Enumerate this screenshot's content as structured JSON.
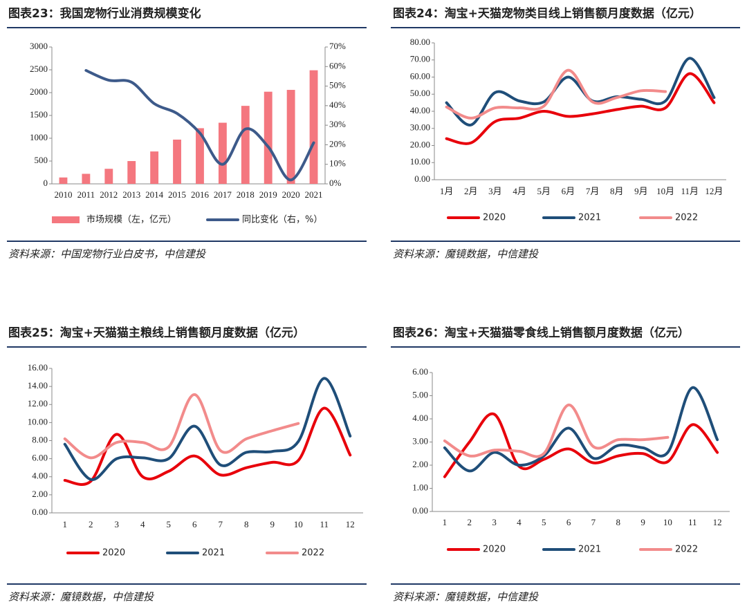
{
  "chart_data": [
    {
      "type": "combo",
      "title": "图表23：我国宠物行业消费规模变化",
      "source": "资料来源：中国宠物行业白皮书，中信建投",
      "categories": [
        "2010",
        "2011",
        "2012",
        "2013",
        "2014",
        "2015",
        "2016",
        "2017",
        "2018",
        "2019",
        "2020",
        "2021"
      ],
      "series": [
        {
          "name": "市场规模（左，亿元）",
          "type": "bar",
          "color": "#f4777f",
          "values": [
            140,
            220,
            330,
            500,
            710,
            970,
            1220,
            1340,
            1710,
            2020,
            2060,
            2490
          ]
        },
        {
          "name": "同比变化（右，%）",
          "type": "line",
          "axis": "y2",
          "color": "#3d5a8a",
          "values": [
            null,
            58,
            53,
            52,
            41,
            36,
            26,
            10,
            28,
            19,
            2,
            21
          ]
        }
      ],
      "ylim": [
        0,
        3000
      ],
      "yticks": [
        0,
        500,
        1000,
        1500,
        2000,
        2500,
        3000
      ],
      "y2lim": [
        0,
        70
      ],
      "y2ticks": [
        {
          "value": 0,
          "label": "0%"
        },
        {
          "value": 10,
          "label": "10%"
        },
        {
          "value": 20,
          "label": "20%"
        },
        {
          "value": 30,
          "label": "30%"
        },
        {
          "value": 40,
          "label": "40%"
        },
        {
          "value": 50,
          "label": "50%"
        },
        {
          "value": 60,
          "label": "60%"
        },
        {
          "value": 70,
          "label": "70%"
        }
      ]
    },
    {
      "type": "line",
      "title": "图表24：淘宝+天猫宠物类目线上销售额月度数据（亿元）",
      "source": "资料来源：魔镜数据，中信建投",
      "categories": [
        "1月",
        "2月",
        "3月",
        "4月",
        "5月",
        "6月",
        "7月",
        "8月",
        "9月",
        "10月",
        "11月",
        "12月"
      ],
      "series": [
        {
          "name": "2020",
          "color": "#e8000b",
          "values": [
            24,
            21.5,
            34,
            36,
            40,
            37,
            38.5,
            41,
            43,
            42,
            62,
            45
          ]
        },
        {
          "name": "2021",
          "color": "#1f4e79",
          "values": [
            45,
            32,
            51,
            46,
            45.5,
            60,
            46,
            48.5,
            47,
            46,
            71,
            48
          ]
        },
        {
          "name": "2022",
          "color": "#f28b8b",
          "values": [
            42.5,
            36,
            42,
            42,
            43,
            64,
            45.5,
            48,
            52,
            51.5,
            null,
            null
          ]
        }
      ],
      "ylim": [
        0,
        80
      ],
      "yticks": [
        {
          "value": 0,
          "label": "0.00"
        },
        {
          "value": 10,
          "label": "10.00"
        },
        {
          "value": 20,
          "label": "20.00"
        },
        {
          "value": 30,
          "label": "30.00"
        },
        {
          "value": 40,
          "label": "40.00"
        },
        {
          "value": 50,
          "label": "50.00"
        },
        {
          "value": 60,
          "label": "60.00"
        },
        {
          "value": 70,
          "label": "70.00"
        },
        {
          "value": 80,
          "label": "80.00"
        }
      ]
    },
    {
      "type": "line",
      "title": "图表25：淘宝+天猫猫主粮线上销售额月度数据（亿元）",
      "source": "资料来源：魔镜数据，中信建投",
      "categories": [
        "1",
        "2",
        "3",
        "4",
        "5",
        "6",
        "7",
        "8",
        "9",
        "10",
        "11",
        "12"
      ],
      "series": [
        {
          "name": "2020",
          "color": "#e8000b",
          "values": [
            3.6,
            3.5,
            8.7,
            4.0,
            4.6,
            6.3,
            4.2,
            5.0,
            5.6,
            5.8,
            11.6,
            6.4
          ]
        },
        {
          "name": "2021",
          "color": "#1f4e79",
          "values": [
            7.6,
            3.7,
            6.0,
            6.1,
            6.0,
            9.6,
            5.3,
            6.7,
            6.8,
            7.9,
            14.9,
            8.5
          ]
        },
        {
          "name": "2022",
          "color": "#f28b8b",
          "values": [
            8.2,
            6.1,
            7.8,
            7.8,
            7.3,
            13.1,
            6.9,
            8.2,
            9.1,
            9.9,
            null,
            null
          ]
        }
      ],
      "ylim": [
        0,
        16
      ],
      "yticks": [
        {
          "value": 0,
          "label": "0.00"
        },
        {
          "value": 2,
          "label": "2.00"
        },
        {
          "value": 4,
          "label": "4.00"
        },
        {
          "value": 6,
          "label": "6.00"
        },
        {
          "value": 8,
          "label": "8.00"
        },
        {
          "value": 10,
          "label": "10.00"
        },
        {
          "value": 12,
          "label": "12.00"
        },
        {
          "value": 14,
          "label": "14.00"
        },
        {
          "value": 16,
          "label": "16.00"
        }
      ]
    },
    {
      "type": "line",
      "title": "图表26：淘宝+天猫猫零食线上销售额月度数据（亿元）",
      "source": "资料来源：魔镜数据，中信建投",
      "categories": [
        "1",
        "2",
        "3",
        "4",
        "5",
        "6",
        "7",
        "8",
        "9",
        "10",
        "11",
        "12"
      ],
      "series": [
        {
          "name": "2020",
          "color": "#e8000b",
          "values": [
            1.5,
            3.0,
            4.2,
            1.95,
            2.25,
            2.7,
            2.1,
            2.4,
            2.5,
            2.15,
            3.75,
            2.55
          ]
        },
        {
          "name": "2021",
          "color": "#1f4e79",
          "values": [
            2.75,
            1.75,
            2.55,
            2.0,
            2.4,
            3.6,
            2.3,
            2.85,
            2.75,
            2.55,
            5.35,
            3.1
          ]
        },
        {
          "name": "2022",
          "color": "#f28b8b",
          "values": [
            3.05,
            2.4,
            2.65,
            2.6,
            2.5,
            4.6,
            2.8,
            3.1,
            3.1,
            3.2,
            null,
            null
          ]
        }
      ],
      "ylim": [
        0,
        6
      ],
      "yticks": [
        {
          "value": 0,
          "label": "0.00"
        },
        {
          "value": 1,
          "label": "1.00"
        },
        {
          "value": 2,
          "label": "2.00"
        },
        {
          "value": 3,
          "label": "3.00"
        },
        {
          "value": 4,
          "label": "4.00"
        },
        {
          "value": 5,
          "label": "5.00"
        },
        {
          "value": 6,
          "label": "6.00"
        }
      ]
    }
  ]
}
